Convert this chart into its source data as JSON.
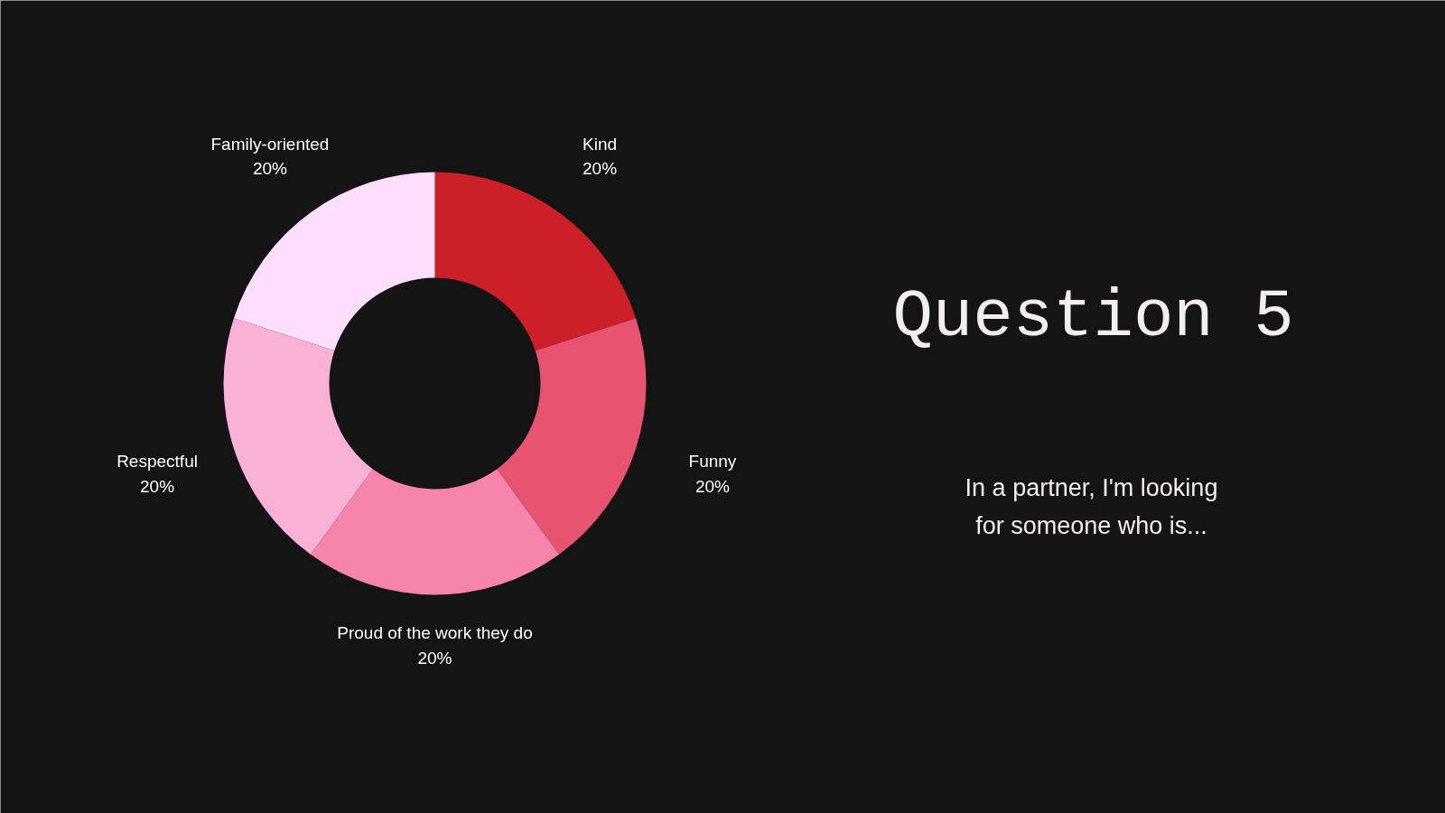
{
  "chart_data": {
    "type": "donut",
    "title": "Question 5",
    "subtitle": "In a partner, I'm looking\nfor someone who is...",
    "categories": [
      "Kind",
      "Funny",
      "Proud of the work they do",
      "Respectful",
      "Family-oriented"
    ],
    "values": [
      20,
      20,
      20,
      20,
      20
    ],
    "colors": [
      "#cc1f27",
      "#e85372",
      "#f785ab",
      "#f9b1d6",
      "#ffdffc"
    ],
    "value_labels": [
      "20%",
      "20%",
      "20%",
      "20%",
      "20%"
    ]
  }
}
